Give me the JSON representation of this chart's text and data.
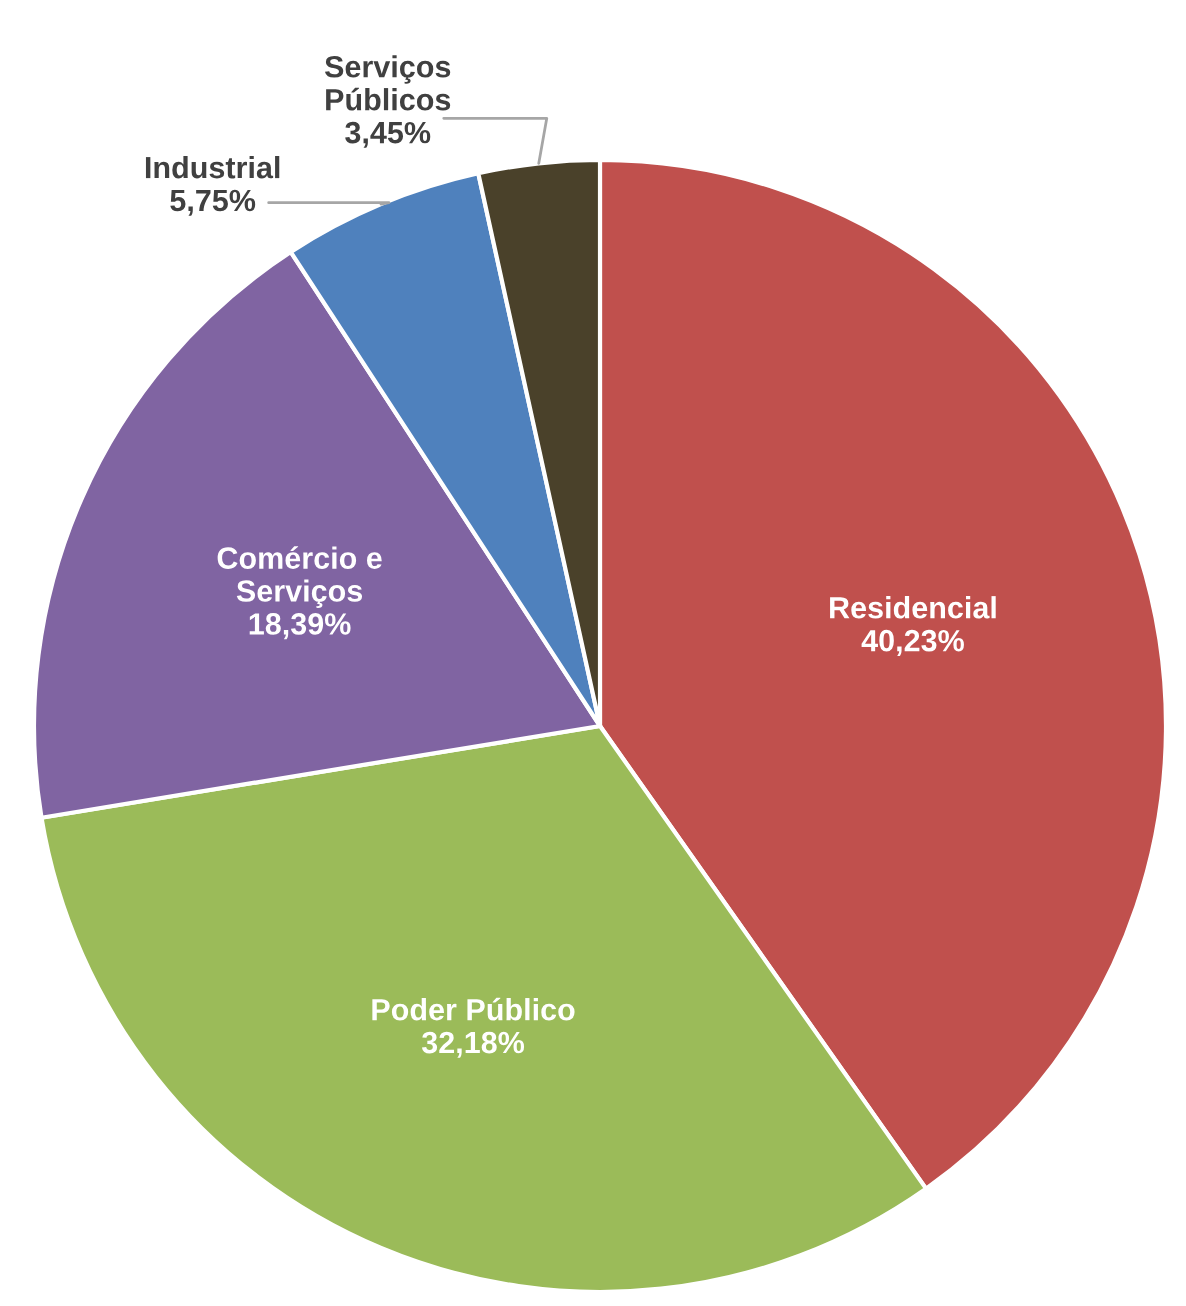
{
  "chart_data": {
    "type": "pie",
    "categories": [
      "Residencial",
      "Poder Público",
      "Comércio e Serviços",
      "Industrial",
      "Serviços Públicos"
    ],
    "values": [
      40.23,
      32.18,
      18.39,
      5.75,
      3.45
    ],
    "value_labels": [
      "40,23%",
      "32,18%",
      "18,39%",
      "5,75%",
      "3,45%"
    ],
    "colors": [
      "#c0504d",
      "#9bbb59",
      "#8064a2",
      "#4f81bd",
      "#4a412a"
    ],
    "legend": false
  }
}
